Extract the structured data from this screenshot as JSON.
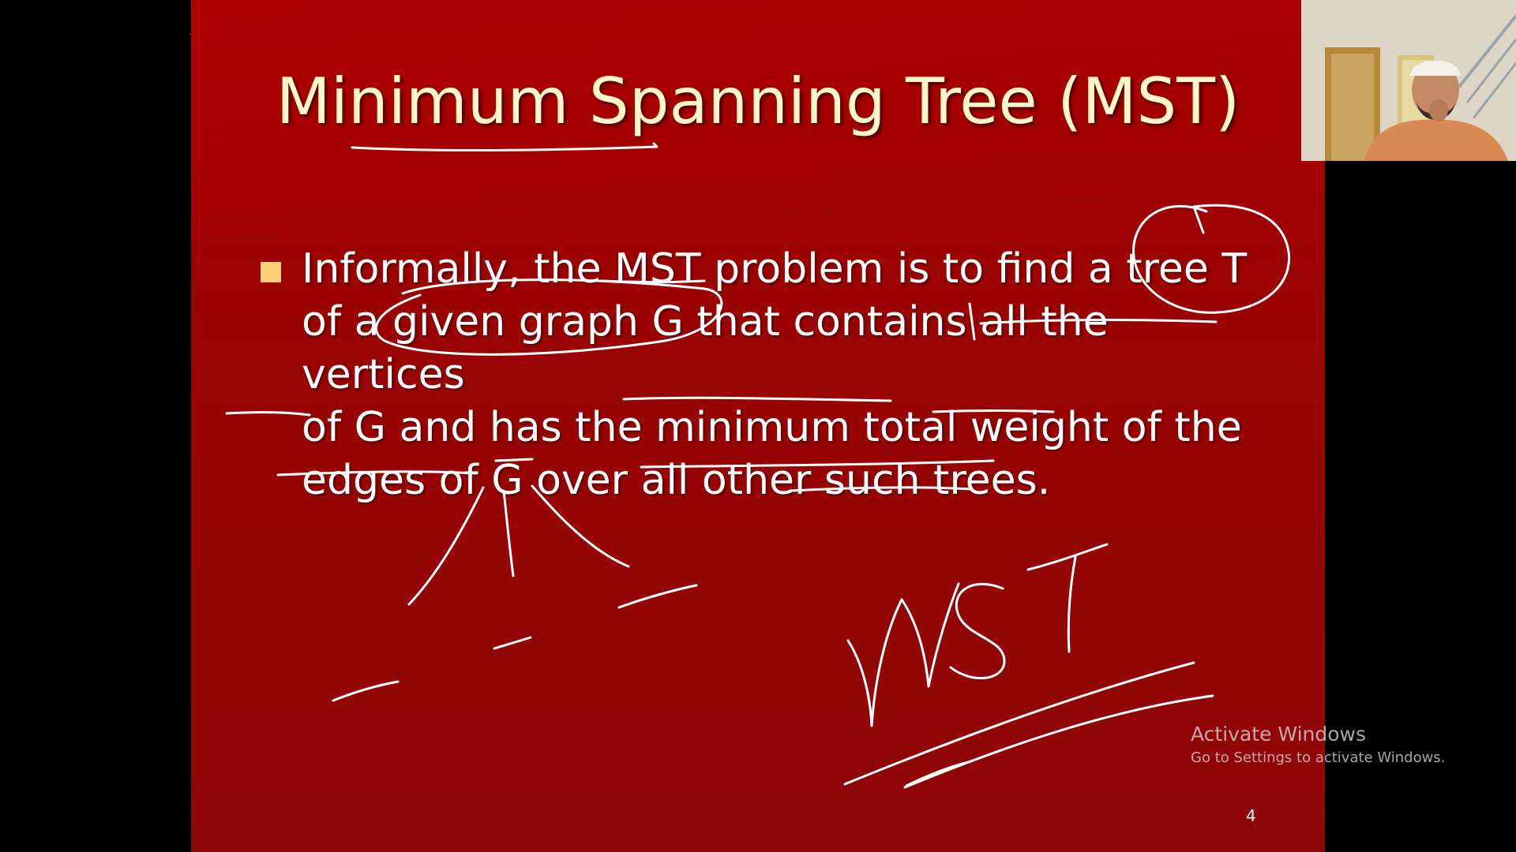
{
  "slide": {
    "title": "Minimum Spanning Tree (MST)",
    "bullet_lines": [
      "Informally, the MST problem is to find a tree T",
      "of a given graph G that contains all the vertices",
      "of G and has the minimum total weight of the",
      "edges of G over all other such trees."
    ],
    "page_number": "4",
    "handwritten_annotation": "MST"
  },
  "watermark": {
    "title": "Activate Windows",
    "subtitle": "Go to Settings to activate Windows."
  },
  "colors": {
    "slide_background": "#9b0303",
    "title_text": "#fff6c8",
    "body_text": "#ffffff",
    "bullet": "#ffd078",
    "ink": "#ffffff"
  },
  "icons": {
    "bullet": "square-bullet-icon"
  }
}
